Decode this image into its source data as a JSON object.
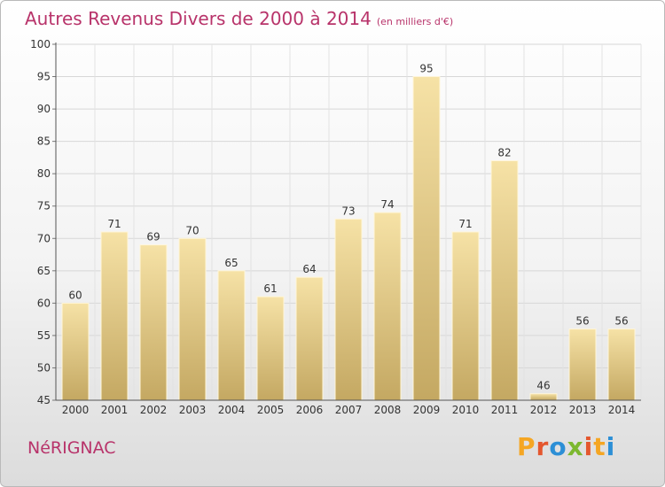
{
  "header": {
    "title": "Autres Revenus Divers de 2000 à 2014",
    "unit_note": "(en milliers d'€)"
  },
  "footer": {
    "commune": "NéRIGNAC",
    "logo_letters": [
      "P",
      "r",
      "o",
      "x",
      "i",
      "t",
      "i"
    ],
    "logo_colors": [
      "#f5a623",
      "#e4572e",
      "#2c8fd6",
      "#7cb82f",
      "#e4572e",
      "#f5a623",
      "#2c8fd6"
    ]
  },
  "colors": {
    "title": "#b8336a",
    "bar_light": "#f3db98",
    "bar_dark": "#c8ad67",
    "grid": "#d9d9d9"
  },
  "chart_data": {
    "type": "bar",
    "title": "Autres Revenus Divers de 2000 à 2014",
    "subtitle": "(en milliers d'€)",
    "categories": [
      "2000",
      "2001",
      "2002",
      "2003",
      "2004",
      "2005",
      "2006",
      "2007",
      "2008",
      "2009",
      "2010",
      "2011",
      "2012",
      "2013",
      "2014"
    ],
    "values": [
      60,
      71,
      69,
      70,
      65,
      61,
      64,
      73,
      74,
      95,
      71,
      82,
      46,
      56,
      56
    ],
    "ylim": [
      45,
      100
    ],
    "yticks": [
      45,
      50,
      55,
      60,
      65,
      70,
      75,
      80,
      85,
      90,
      95,
      100
    ],
    "grid": true,
    "xlabel": "",
    "ylabel": ""
  }
}
